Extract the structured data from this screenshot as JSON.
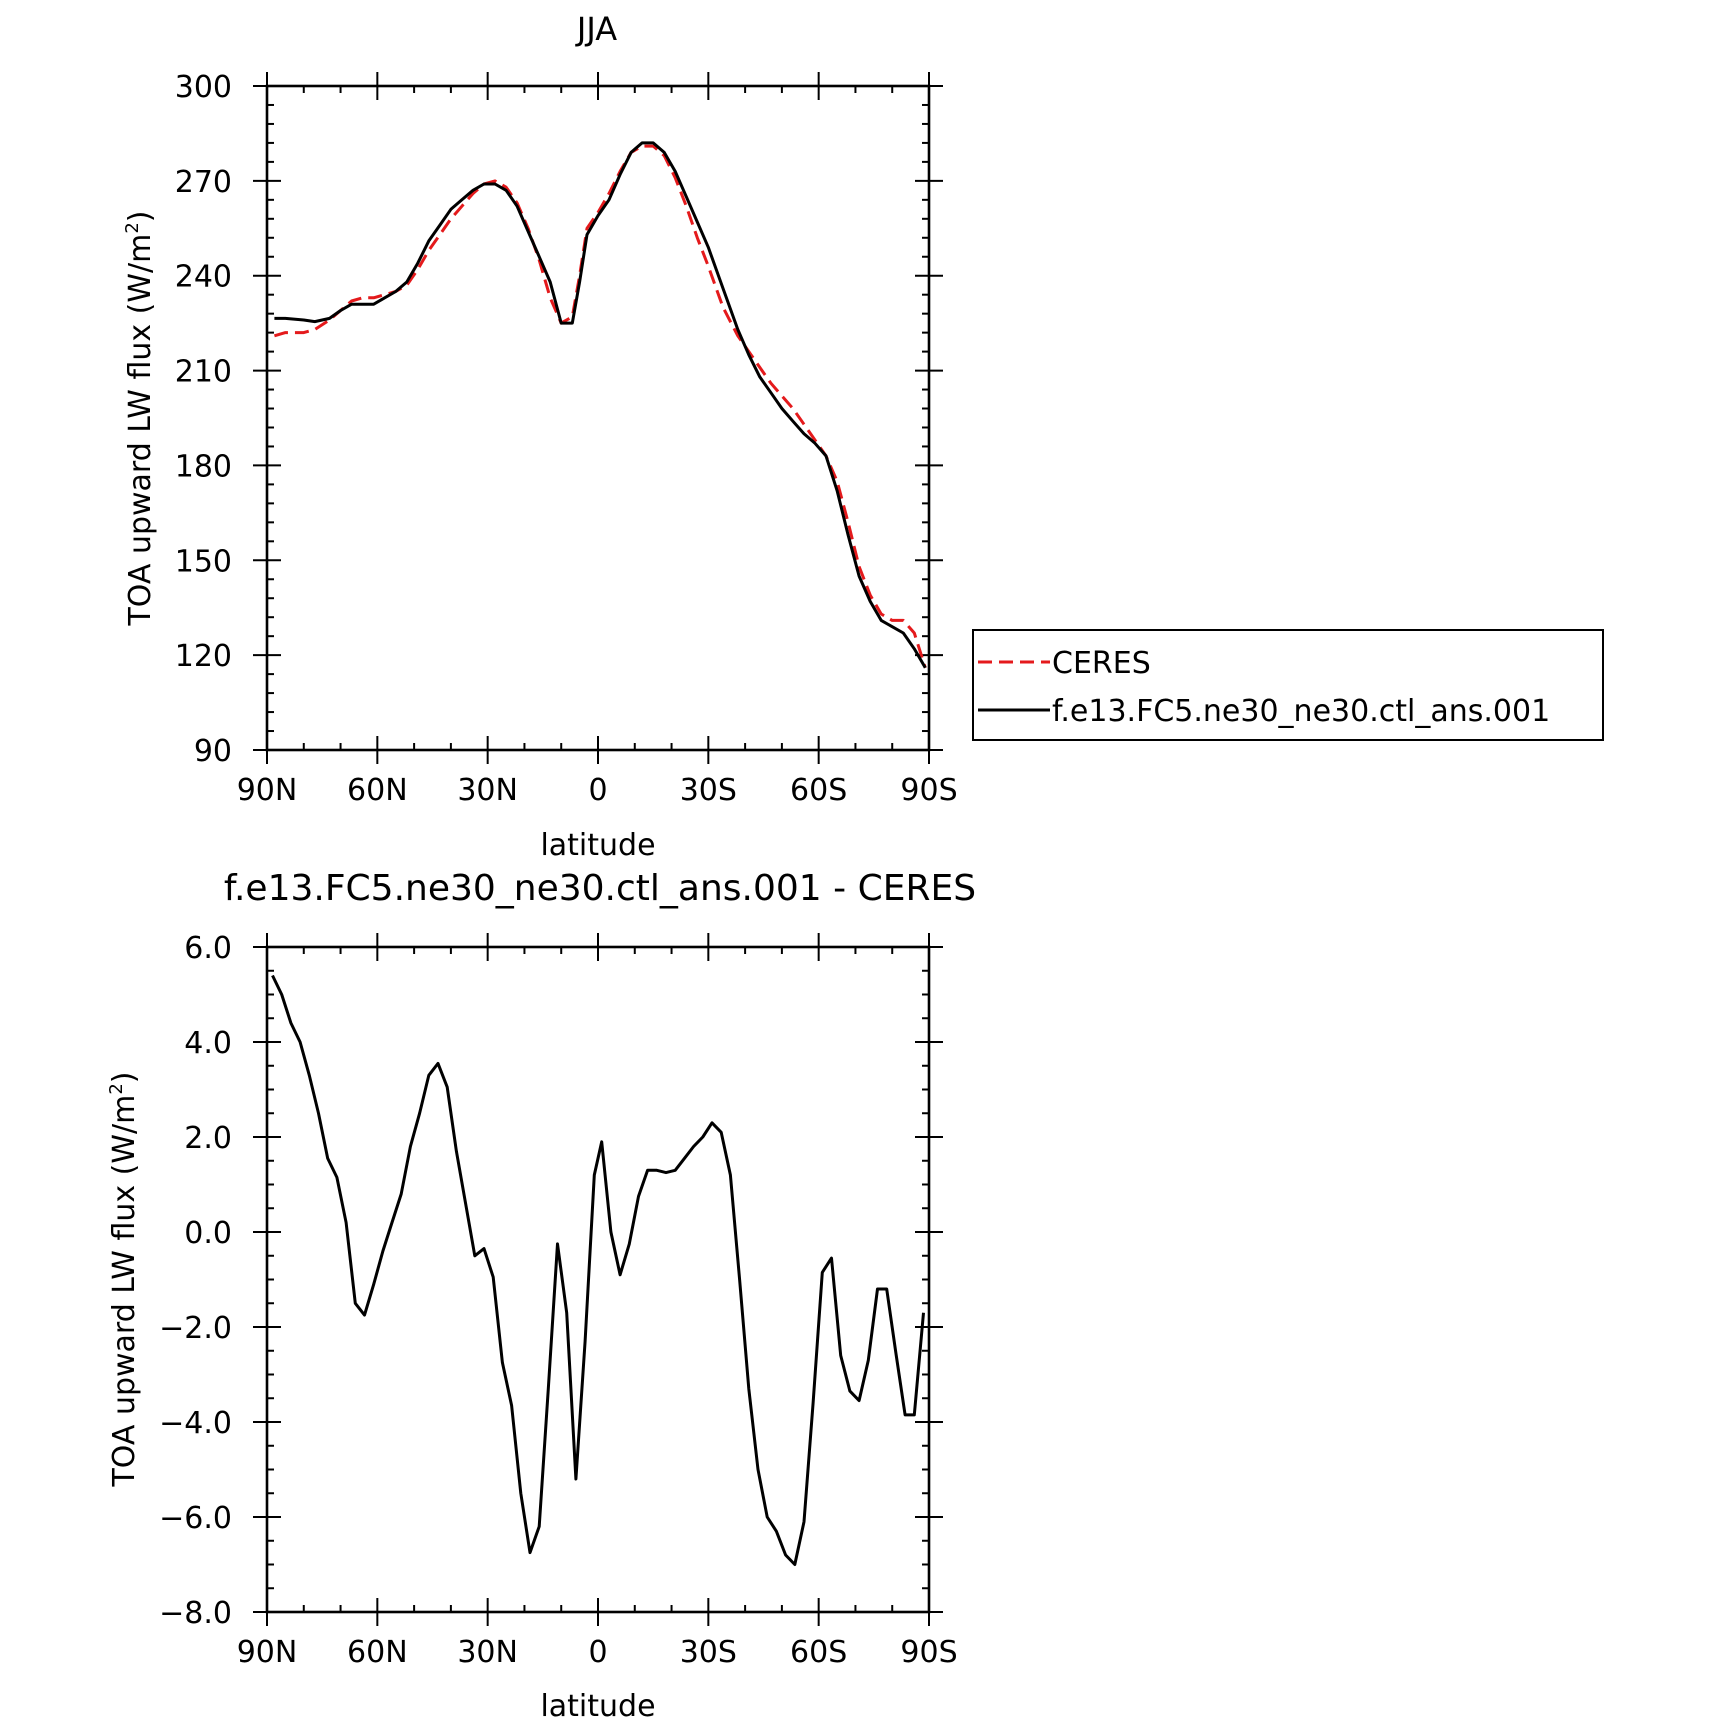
{
  "chart_data": [
    {
      "type": "line",
      "title": "JJA",
      "xlabel": "latitude",
      "ylabel": "TOA upward LW flux (W/m²)",
      "ylabel_main": "TOA upward LW flux (W/m",
      "ylabel_sup": "2",
      "ylabel_close": ")",
      "xlim": [
        90,
        -90
      ],
      "ylim": [
        90,
        300
      ],
      "x_ticks": [
        90,
        60,
        30,
        0,
        -30,
        -60,
        -90
      ],
      "x_tick_labels": [
        "90N",
        "60N",
        "30N",
        "0",
        "30S",
        "60S",
        "90S"
      ],
      "y_ticks": [
        90,
        120,
        150,
        180,
        210,
        240,
        270,
        300
      ],
      "y_tick_labels": [
        "90",
        "120",
        "150",
        "180",
        "210",
        "240",
        "270",
        "300"
      ],
      "legend": {
        "position": "right"
      },
      "series": [
        {
          "name": "CERES",
          "color": "#e41a1c",
          "dash": true,
          "x": [
            88,
            85,
            80,
            77,
            73,
            70,
            67,
            64,
            61,
            58,
            55,
            52,
            49,
            46,
            43,
            40,
            37,
            34,
            31,
            28,
            25,
            22,
            19,
            16,
            13,
            10,
            7,
            5,
            3,
            0,
            -3,
            -6,
            -9,
            -12,
            -15,
            -18,
            -21,
            -24,
            -27,
            -30,
            -34,
            -38,
            -41,
            -44,
            -47,
            -50,
            -53,
            -56,
            -59,
            -62,
            -65,
            -68,
            -71,
            -74,
            -77,
            -80,
            -83,
            -86,
            -89
          ],
          "y": [
            221,
            222,
            222,
            223,
            226,
            229,
            232,
            233,
            233,
            234,
            235,
            237,
            242,
            248,
            253,
            258,
            262,
            266,
            269,
            270,
            268,
            263,
            255,
            245,
            233,
            225,
            227,
            240,
            255,
            260,
            266,
            273,
            279,
            281,
            281,
            278,
            271,
            262,
            252,
            243,
            230,
            221,
            216,
            211,
            206,
            202,
            198,
            193,
            188,
            183,
            175,
            162,
            148,
            139,
            133,
            131,
            131,
            127,
            116
          ]
        },
        {
          "name": "f.e13.FC5.ne30_ne30.ctl_ans.001",
          "color": "#000000",
          "dash": false,
          "x": [
            88,
            85,
            80,
            77,
            73,
            70,
            67,
            64,
            61,
            58,
            55,
            52,
            49,
            46,
            43,
            40,
            37,
            34,
            31,
            28,
            25,
            22,
            19,
            16,
            13,
            10,
            7,
            5,
            3,
            0,
            -3,
            -6,
            -9,
            -12,
            -15,
            -18,
            -21,
            -24,
            -27,
            -30,
            -34,
            -38,
            -41,
            -44,
            -47,
            -50,
            -53,
            -56,
            -59,
            -62,
            -65,
            -68,
            -71,
            -74,
            -77,
            -80,
            -83,
            -86,
            -89
          ],
          "y": [
            226.5,
            226.5,
            226,
            225.5,
            226.5,
            229,
            231,
            231,
            231,
            233,
            235,
            238,
            244,
            251,
            256,
            261,
            264,
            267,
            269,
            269,
            267,
            262,
            254,
            246,
            238,
            225,
            225,
            238,
            253,
            259,
            264,
            272,
            279,
            282,
            282,
            279,
            273,
            265,
            257,
            249,
            236,
            223,
            215,
            208,
            203,
            198,
            194,
            190,
            187,
            183,
            172,
            158,
            145,
            137,
            131,
            129,
            127,
            122,
            116
          ]
        }
      ]
    },
    {
      "type": "line",
      "title": "f.e13.FC5.ne30_ne30.ctl_ans.001 - CERES",
      "xlabel": "latitude",
      "ylabel": "TOA upward LW flux (W/m²)",
      "ylabel_main": "TOA upward LW flux (W/m",
      "ylabel_sup": "2",
      "ylabel_close": ")",
      "xlim": [
        90,
        -90
      ],
      "ylim": [
        -8,
        6
      ],
      "x_ticks": [
        90,
        60,
        30,
        0,
        -30,
        -60,
        -90
      ],
      "x_tick_labels": [
        "90N",
        "60N",
        "30N",
        "0",
        "30S",
        "60S",
        "90S"
      ],
      "y_ticks": [
        -8,
        -6,
        -4,
        -2,
        0,
        2,
        4,
        6
      ],
      "y_tick_labels": [
        "-8.0",
        "-6.0",
        "-4.0",
        "-2.0",
        "0.0",
        "2.0",
        "4.0",
        "6.0"
      ],
      "series": [
        {
          "color": "#000000",
          "dash": false,
          "x": [
            88.5,
            86,
            83.5,
            81,
            78.5,
            76,
            73.5,
            71,
            68.5,
            66,
            63.5,
            61,
            58.5,
            56,
            53.5,
            51,
            48.5,
            46,
            43.5,
            41,
            38.5,
            36,
            33.5,
            31,
            28.5,
            26,
            23.5,
            21,
            18.5,
            16,
            13.5,
            11,
            8.5,
            6,
            3.5,
            1,
            -1,
            -3.5,
            -6,
            -8.5,
            -11,
            -13.5,
            -16,
            -18.5,
            -21,
            -23.5,
            -26,
            -28.5,
            -31,
            -33.5,
            -36,
            -38.5,
            -41,
            -43.5,
            -46,
            -48.5,
            -51,
            -53.5,
            -56,
            -58.5,
            -61,
            -63.5,
            -66,
            -68.5,
            -71,
            -73.5,
            -76,
            -78.5,
            -81,
            -83.5,
            -86,
            -88.5
          ],
          "y": [
            5.4,
            5.0,
            4.4,
            4.0,
            3.3,
            2.5,
            1.55,
            1.15,
            0.2,
            -1.5,
            -1.75,
            -1.1,
            -0.4,
            0.2,
            0.8,
            1.8,
            2.5,
            3.3,
            3.55,
            3.05,
            1.7,
            0.6,
            -0.5,
            -0.35,
            -0.95,
            -2.75,
            -3.65,
            -5.5,
            -6.75,
            -6.2,
            -3.3,
            -0.25,
            -1.7,
            -5.2,
            -2.3,
            1.2,
            1.9,
            0.0,
            -0.9,
            -0.25,
            0.75,
            1.3,
            1.3,
            1.25,
            1.3,
            1.55,
            1.8,
            2.0,
            2.3,
            2.1,
            1.2,
            -1.0,
            -3.3,
            -5.0,
            -6.0,
            -6.3,
            -6.8,
            -7.0,
            -6.1,
            -3.6,
            -0.85,
            -0.55,
            -2.6,
            -3.35,
            -3.55,
            -2.7,
            -1.2,
            -1.2,
            -2.55,
            -3.85,
            -3.85,
            -1.7
          ]
        }
      ]
    }
  ]
}
